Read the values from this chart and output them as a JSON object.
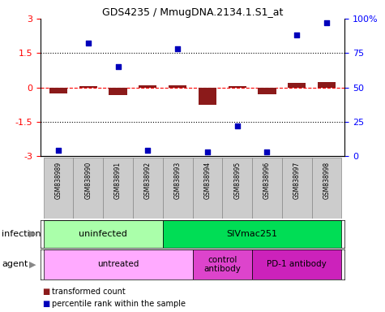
{
  "title": "GDS4235 / MmugDNA.2134.1.S1_at",
  "samples": [
    "GSM838989",
    "GSM838990",
    "GSM838991",
    "GSM838992",
    "GSM838993",
    "GSM838994",
    "GSM838995",
    "GSM838996",
    "GSM838997",
    "GSM838998"
  ],
  "transformed_count": [
    -0.28,
    0.07,
    -0.35,
    0.08,
    0.1,
    -0.78,
    0.04,
    -0.3,
    0.18,
    0.22
  ],
  "percentile_rank": [
    4,
    82,
    65,
    4,
    78,
    3,
    22,
    3,
    88,
    97
  ],
  "ylim": [
    -3,
    3
  ],
  "y2lim": [
    0,
    100
  ],
  "yticks": [
    -3,
    -1.5,
    0,
    1.5,
    3
  ],
  "y2ticks": [
    0,
    25,
    50,
    75,
    100
  ],
  "bar_color": "#8b1a1a",
  "dot_color": "#0000bb",
  "infection_groups": [
    {
      "label": "uninfected",
      "start": 0,
      "end": 3,
      "color": "#aaffaa"
    },
    {
      "label": "SIVmac251",
      "start": 4,
      "end": 9,
      "color": "#00dd55"
    }
  ],
  "agent_groups": [
    {
      "label": "untreated",
      "start": 0,
      "end": 4,
      "color": "#ffaaff"
    },
    {
      "label": "control\nantibody",
      "start": 5,
      "end": 6,
      "color": "#dd44cc"
    },
    {
      "label": "PD-1 antibody",
      "start": 7,
      "end": 9,
      "color": "#cc22bb"
    }
  ],
  "infection_label": "infection",
  "agent_label": "agent",
  "legend_bar_label": "transformed count",
  "legend_dot_label": "percentile rank within the sample"
}
